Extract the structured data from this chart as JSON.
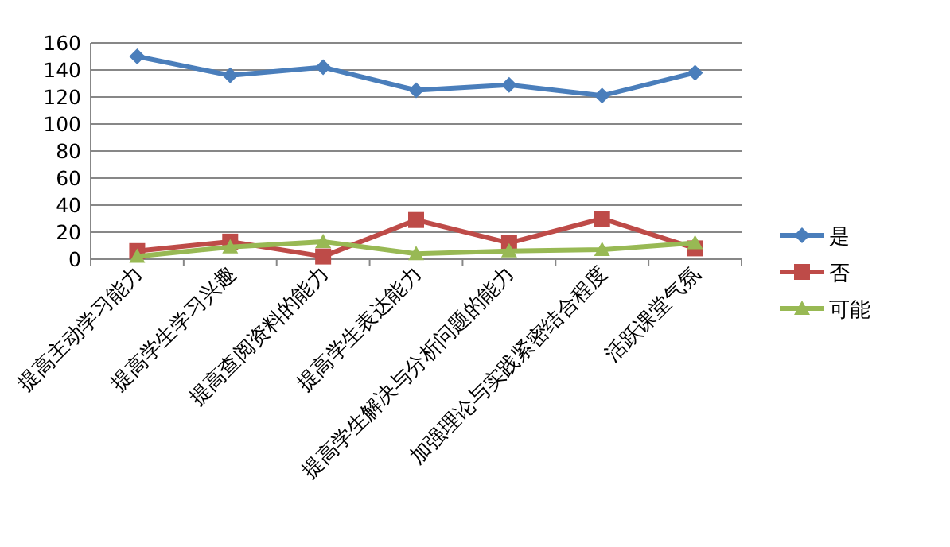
{
  "chart_data": {
    "type": "line",
    "categories": [
      "提高主动学习能力",
      "提高学生学习兴趣",
      "提高查阅资料的能力",
      "提高学生表达能力",
      "提高学生解决与分析问题的能力",
      "加强理论与实践紧密结合程度",
      "活跃课堂气氛"
    ],
    "series": [
      {
        "name": "是",
        "color": "#4a7ebb",
        "marker": "diamond",
        "values": [
          150,
          136,
          142,
          125,
          129,
          121,
          138
        ]
      },
      {
        "name": "否",
        "color": "#be4b48",
        "marker": "square",
        "values": [
          6,
          13,
          2,
          29,
          12,
          30,
          8
        ]
      },
      {
        "name": "可能",
        "color": "#98b954",
        "marker": "triangle",
        "values": [
          2,
          9,
          13,
          4,
          6,
          7,
          12
        ]
      }
    ],
    "ylim": [
      0,
      160
    ],
    "yticks": [
      0,
      20,
      40,
      60,
      80,
      100,
      120,
      140,
      160
    ],
    "grid": "y",
    "legend": "right"
  }
}
